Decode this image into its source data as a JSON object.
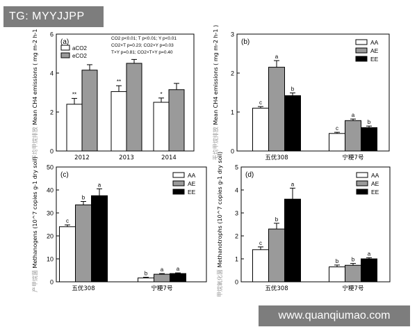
{
  "badge": "TG: MYYJJPP",
  "watermark": "www.quanqiumao.com",
  "colors": {
    "white": "#ffffff",
    "gray": "#9a9a9a",
    "black": "#000000"
  },
  "chart_data": [
    {
      "type": "bar",
      "panel_label": "(a)",
      "ylabel_cn": "平均甲烷排放",
      "ylabel": "Mean CH4 emissions ( mg m-2 h-1 )",
      "ylim": [
        0,
        6
      ],
      "yticks": [
        "0",
        "2",
        "4",
        "6"
      ],
      "categories": [
        "2012",
        "2013",
        "2014"
      ],
      "series": [
        {
          "name": "aCO2",
          "color": "#ffffff",
          "values": [
            2.4,
            3.05,
            2.5
          ],
          "errors": [
            0.3,
            0.3,
            0.22
          ],
          "labels": [
            "**",
            "**",
            "*"
          ]
        },
        {
          "name": "eCO2",
          "color": "#9a9a9a",
          "values": [
            4.15,
            4.5,
            3.15
          ],
          "errors": [
            0.28,
            0.2,
            0.32
          ],
          "labels": [
            "",
            "",
            ""
          ]
        }
      ],
      "legend_position": "top-left",
      "stats": [
        "CO2  p<0.01;  T  p<0.01;  Y  p<0.01",
        "CO2×T  p=0.23;  CO2×Y   p=0.03",
        "T×Y   p=0.81;  CO2×T×Y  p=0.40"
      ]
    },
    {
      "type": "bar",
      "panel_label": "(b)",
      "ylabel_cn": "平均甲烷排放",
      "ylabel": "Mean CH4 emissions ( mg m-2 h-1 )",
      "ylim": [
        0,
        3
      ],
      "yticks": [
        "0",
        "1",
        "2",
        "3"
      ],
      "categories": [
        "五优308",
        "宁粳7号"
      ],
      "series": [
        {
          "name": "AA",
          "color": "#ffffff",
          "values": [
            1.1,
            0.45
          ],
          "errors": [
            0.04,
            0.03
          ],
          "labels": [
            "c",
            "c"
          ]
        },
        {
          "name": "AE",
          "color": "#9a9a9a",
          "values": [
            2.15,
            0.78
          ],
          "errors": [
            0.17,
            0.04
          ],
          "labels": [
            "a",
            "a"
          ]
        },
        {
          "name": "EE",
          "color": "#000000",
          "values": [
            1.42,
            0.6
          ],
          "errors": [
            0.07,
            0.04
          ],
          "labels": [
            "b",
            "b"
          ]
        }
      ],
      "legend_position": "top-right"
    },
    {
      "type": "bar",
      "panel_label": "(c)",
      "ylabel_cn": "产甲烷菌",
      "ylabel": "Methanogens (10^7 copies g-1 dry soil)",
      "ylim": [
        0,
        50
      ],
      "yticks": [
        "0",
        "10",
        "20",
        "30",
        "40",
        "50"
      ],
      "categories": [
        "五优308",
        "宁粳7号"
      ],
      "series": [
        {
          "name": "AA",
          "color": "#ffffff",
          "values": [
            24,
            1.7
          ],
          "errors": [
            0.8,
            0.3
          ],
          "labels": [
            "c",
            "b"
          ]
        },
        {
          "name": "AE",
          "color": "#9a9a9a",
          "values": [
            33.5,
            3.3
          ],
          "errors": [
            1.5,
            0.3
          ],
          "labels": [
            "b",
            "a"
          ]
        },
        {
          "name": "EE",
          "color": "#000000",
          "values": [
            37.5,
            3.6
          ],
          "errors": [
            3.0,
            0.3
          ],
          "labels": [
            "a",
            "a"
          ]
        }
      ],
      "legend_position": "top-right"
    },
    {
      "type": "bar",
      "panel_label": "(d)",
      "ylabel_cn": "甲烷氧化菌",
      "ylabel": "Methanotrophs (10^7 copies g-1 dry soil)",
      "ylim": [
        0,
        5
      ],
      "yticks": [
        "0",
        "1",
        "2",
        "3",
        "4",
        "5"
      ],
      "categories": [
        "五优308",
        "宁粳7号"
      ],
      "series": [
        {
          "name": "AA",
          "color": "#ffffff",
          "values": [
            1.4,
            0.65
          ],
          "errors": [
            0.12,
            0.08
          ],
          "labels": [
            "c",
            "b"
          ]
        },
        {
          "name": "AE",
          "color": "#9a9a9a",
          "values": [
            2.3,
            0.72
          ],
          "errors": [
            0.25,
            0.08
          ],
          "labels": [
            "b",
            "b"
          ]
        },
        {
          "name": "EE",
          "color": "#000000",
          "values": [
            3.6,
            1.0
          ],
          "errors": [
            0.48,
            0.05
          ],
          "labels": [
            "a",
            "a"
          ]
        }
      ],
      "legend_position": "top-right"
    }
  ]
}
